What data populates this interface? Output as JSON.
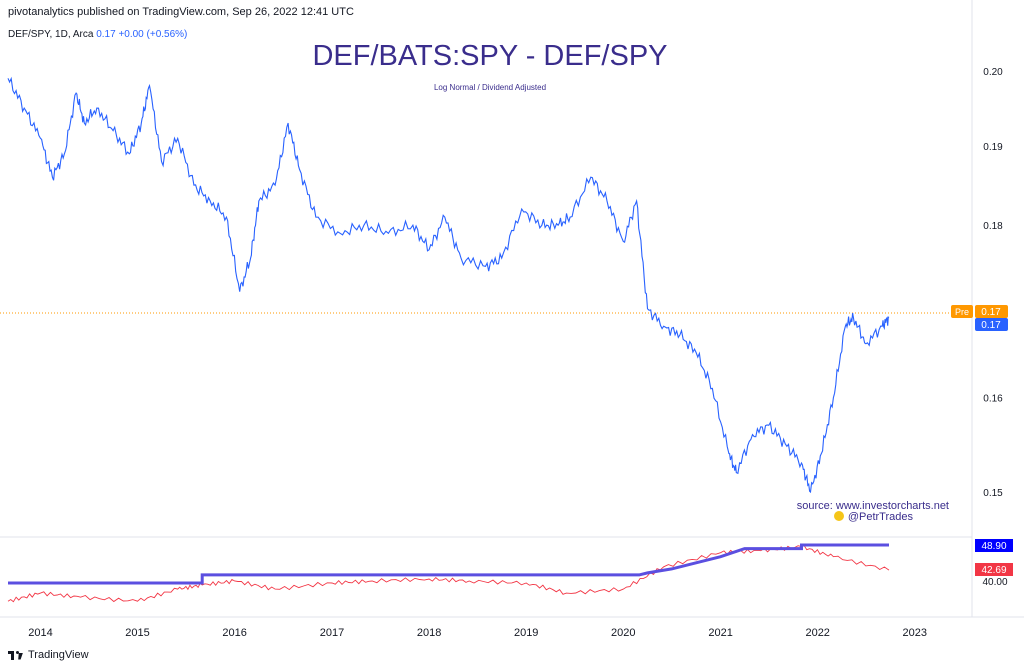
{
  "header": {
    "published": "pivotanalytics published on TradingView.com, Sep 26, 2022 12:41 UTC"
  },
  "legend": {
    "symbol": "DEF/SPY, 1D, Arca",
    "last": "0.17",
    "change": "+0.00 (+0.56%)"
  },
  "title": "DEF/BATS:SPY - DEF/SPY",
  "subtitle": "Log Normal / Dividend Adjusted",
  "annotation": {
    "source": "source: www.investorcharts.net",
    "handle": "@PetrTrades"
  },
  "footer": {
    "brand": "TradingView"
  },
  "colors": {
    "price_line": "#2962ff",
    "pre_badge": "#ff9800",
    "last_badge": "#2962ff",
    "rsi_high": "#5b4fe0",
    "rsi_badge_high": "#0000ff",
    "rsi_line": "#f23645"
  },
  "chart_data": {
    "type": "line",
    "panes": [
      {
        "name": "price",
        "scale": "log",
        "y_ticks": [
          "0.20",
          "0.19",
          "0.18",
          "0.16",
          "0.15"
        ],
        "price_badges": [
          {
            "label": "Pre",
            "value": "0.17"
          },
          {
            "label": "",
            "value": "0.17"
          }
        ],
        "series": [
          {
            "name": "DEF/SPY",
            "points": [
              [
                "2013-09-01",
                0.199
              ],
              [
                "2013-11-01",
                0.195
              ],
              [
                "2014-01-01",
                0.191
              ],
              [
                "2014-02-15",
                0.186
              ],
              [
                "2014-04-01",
                0.189
              ],
              [
                "2014-05-15",
                0.197
              ],
              [
                "2014-06-15",
                0.193
              ],
              [
                "2014-08-01",
                0.195
              ],
              [
                "2014-10-01",
                0.192
              ],
              [
                "2014-12-01",
                0.189
              ],
              [
                "2015-01-15",
                0.193
              ],
              [
                "2015-02-15",
                0.198
              ],
              [
                "2015-04-01",
                0.188
              ],
              [
                "2015-06-01",
                0.191
              ],
              [
                "2015-08-01",
                0.185
              ],
              [
                "2015-10-01",
                0.183
              ],
              [
                "2015-12-01",
                0.181
              ],
              [
                "2016-01-20",
                0.172
              ],
              [
                "2016-03-01",
                0.176
              ],
              [
                "2016-04-01",
                0.183
              ],
              [
                "2016-06-01",
                0.185
              ],
              [
                "2016-07-20",
                0.193
              ],
              [
                "2016-09-01",
                0.187
              ],
              [
                "2016-11-01",
                0.181
              ],
              [
                "2017-02-01",
                0.179
              ],
              [
                "2017-05-01",
                0.18
              ],
              [
                "2017-08-01",
                0.179
              ],
              [
                "2017-11-01",
                0.18
              ],
              [
                "2018-01-01",
                0.177
              ],
              [
                "2018-03-01",
                0.181
              ],
              [
                "2018-05-01",
                0.176
              ],
              [
                "2018-08-01",
                0.175
              ],
              [
                "2018-10-01",
                0.176
              ],
              [
                "2018-12-15",
                0.182
              ],
              [
                "2019-03-01",
                0.18
              ],
              [
                "2019-05-01",
                0.18
              ],
              [
                "2019-06-15",
                0.181
              ],
              [
                "2019-09-01",
                0.186
              ],
              [
                "2019-11-01",
                0.183
              ],
              [
                "2020-01-01",
                0.178
              ],
              [
                "2020-02-20",
                0.183
              ],
              [
                "2020-04-01",
                0.17
              ],
              [
                "2020-06-01",
                0.168
              ],
              [
                "2020-08-01",
                0.167
              ],
              [
                "2020-10-01",
                0.165
              ],
              [
                "2020-12-01",
                0.161
              ],
              [
                "2021-02-01",
                0.154
              ],
              [
                "2021-03-01",
                0.152
              ],
              [
                "2021-05-01",
                0.156
              ],
              [
                "2021-07-01",
                0.157
              ],
              [
                "2021-09-01",
                0.155
              ],
              [
                "2021-11-01",
                0.153
              ],
              [
                "2021-12-05",
                0.15
              ],
              [
                "2022-01-15",
                0.154
              ],
              [
                "2022-03-01",
                0.16
              ],
              [
                "2022-04-15",
                0.168
              ],
              [
                "2022-05-15",
                0.169
              ],
              [
                "2022-07-01",
                0.166
              ],
              [
                "2022-09-01",
                0.168
              ],
              [
                "2022-09-26",
                0.169
              ]
            ]
          }
        ]
      },
      {
        "name": "lower",
        "y_ticks": [
          "40.00"
        ],
        "value_badges": [
          "48.90",
          "42.69"
        ],
        "series": [
          {
            "name": "step",
            "points": [
              [
                "2013-09-01",
                39.5
              ],
              [
                "2015-09-01",
                39.5
              ],
              [
                "2015-09-01",
                41.5
              ],
              [
                "2020-03-01",
                41.5
              ],
              [
                "2020-04-01",
                42.0
              ],
              [
                "2020-07-01",
                43.0
              ],
              [
                "2020-10-01",
                44.5
              ],
              [
                "2021-01-01",
                46.0
              ],
              [
                "2021-04-01",
                48.0
              ],
              [
                "2021-11-01",
                48.0
              ],
              [
                "2021-11-01",
                48.9
              ],
              [
                "2022-09-26",
                48.9
              ]
            ]
          },
          {
            "name": "oscillator",
            "points": [
              [
                "2013-09-01",
                35.0
              ],
              [
                "2014-01-01",
                37.0
              ],
              [
                "2014-06-01",
                36.0
              ],
              [
                "2015-01-01",
                35.0
              ],
              [
                "2015-06-01",
                38.0
              ],
              [
                "2015-09-01",
                39.0
              ],
              [
                "2016-01-01",
                40.0
              ],
              [
                "2016-06-01",
                38.0
              ],
              [
                "2017-01-01",
                39.5
              ],
              [
                "2017-06-01",
                40.0
              ],
              [
                "2018-01-01",
                40.5
              ],
              [
                "2018-06-01",
                40.0
              ],
              [
                "2019-01-01",
                39.5
              ],
              [
                "2019-06-01",
                37.0
              ],
              [
                "2020-01-01",
                38.0
              ],
              [
                "2020-06-01",
                43.5
              ],
              [
                "2021-01-01",
                47.0
              ],
              [
                "2021-06-01",
                47.5
              ],
              [
                "2021-11-01",
                48.5
              ],
              [
                "2022-03-01",
                46.0
              ],
              [
                "2022-09-26",
                42.69
              ]
            ]
          }
        ]
      }
    ],
    "x_ticks": [
      "2014",
      "2015",
      "2016",
      "2017",
      "2018",
      "2019",
      "2020",
      "2021",
      "2022",
      "2023"
    ],
    "grid": false
  }
}
